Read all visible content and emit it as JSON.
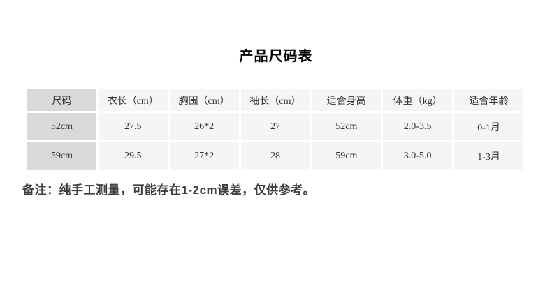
{
  "page": {
    "title": "产品尺码表",
    "note": "备注：纯手工测量，可能存在1-2cm误差，仅供参考。"
  },
  "table": {
    "headers": [
      "尺码",
      "衣长（cm）",
      "胸围（cm）",
      "袖长（cm）",
      "适合身高",
      "体重（kg）",
      "适合年龄"
    ],
    "rows": [
      [
        "52cm",
        "27.5",
        "26*2",
        "27",
        "52cm",
        "2.0-3.5",
        "0-1月"
      ],
      [
        "59cm",
        "29.5",
        "27*2",
        "28",
        "59cm",
        "3.0-5.0",
        "1-3月"
      ]
    ]
  },
  "colors": {
    "first_column_bg": "#d9d9d9",
    "cell_bg": "#f5f5f5",
    "cell_gap": "#ffffff",
    "table_text": "#333333",
    "title_text": "#000000",
    "note_text": "#3d3d3d"
  }
}
